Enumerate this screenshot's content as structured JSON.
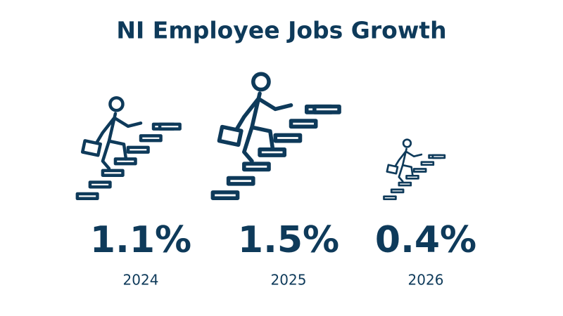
{
  "chart_data": {
    "type": "pictogram",
    "title": "NI Employee Jobs Growth",
    "categories": [
      "2024",
      "2025",
      "2026"
    ],
    "values": [
      1.1,
      1.5,
      0.4
    ],
    "value_labels": [
      "1.1%",
      "1.5%",
      "0.4%"
    ],
    "color": "#0e3a5a"
  }
}
